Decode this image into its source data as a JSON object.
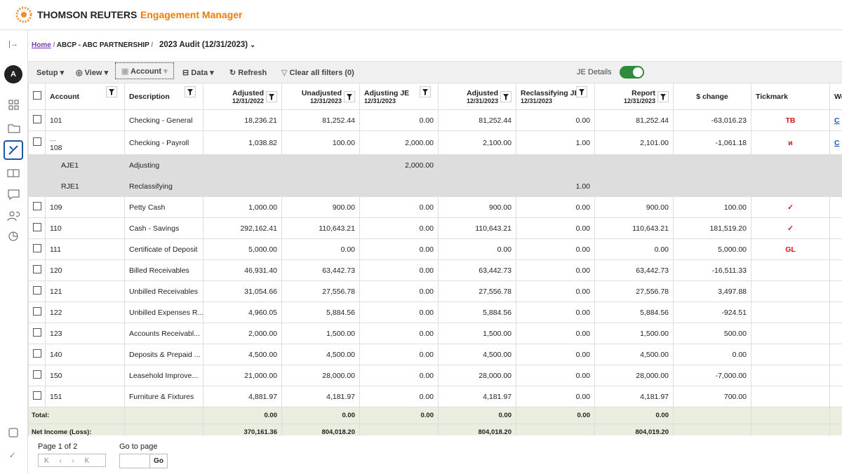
{
  "header": {
    "brand": "THOMSON REUTERS",
    "product": "Engagement Manager"
  },
  "avatar": "A",
  "breadcrumb": {
    "home": "Home",
    "client": "ABCP - ABC PARTNERSHIP",
    "engagement": "2023 Audit (12/31/2023)"
  },
  "toolbar": {
    "setup": "Setup",
    "view": "View",
    "account": "Account",
    "data": "Data",
    "refresh": "Refresh",
    "clear": "Clear all filters (0)",
    "je_details": "JE Details"
  },
  "table": {
    "columns": [
      {
        "label": "Account",
        "filter": true
      },
      {
        "label": "Description",
        "filter": true
      },
      {
        "label": "Adjusted",
        "sub": "12/31/2022",
        "filter": true
      },
      {
        "label": "Unadjusted",
        "sub": "12/31/2023",
        "filter": true
      },
      {
        "label": "Adjusting JE",
        "sub": "12/31/2023",
        "filter": true
      },
      {
        "label": "Adjusted",
        "sub": "12/31/2023",
        "filter": true
      },
      {
        "label": "Reclassifying JE",
        "sub": "12/31/2023",
        "filter": true
      },
      {
        "label": "Report",
        "sub": "12/31/2023",
        "filter": true
      },
      {
        "label": "$ change"
      },
      {
        "label": "Tickmark"
      },
      {
        "label": "Wo"
      }
    ],
    "rows": [
      {
        "cells": [
          "101",
          "Checking - General",
          "18,236.21",
          "81,252.44",
          "0.00",
          "81,252.44",
          "0.00",
          "81,252.44",
          "-63,016.23",
          "TB",
          "C"
        ]
      },
      {
        "expander": "—",
        "cells": [
          "108",
          "Checking - Payroll",
          "1,038.82",
          "100.00",
          "2,000.00",
          "2,100.00",
          "1.00",
          "2,101.00",
          "-1,061.18",
          "ᴎ",
          "C"
        ],
        "entries": [
          [
            "AJE1",
            "Adjusting",
            null,
            null,
            "2,000.00",
            null,
            null,
            null,
            null,
            null,
            null
          ],
          [
            "RJE1",
            "Reclassifying",
            null,
            null,
            null,
            null,
            "1.00",
            null,
            null,
            null,
            null
          ]
        ]
      },
      {
        "cells": [
          "109",
          "Petty Cash",
          "1,000.00",
          "900.00",
          "0.00",
          "900.00",
          "0.00",
          "900.00",
          "100.00",
          "✓",
          null
        ]
      },
      {
        "cells": [
          "110",
          "Cash - Savings",
          "292,162.41",
          "110,643.21",
          "0.00",
          "110,643.21",
          "0.00",
          "110,643.21",
          "181,519.20",
          "✓",
          null
        ]
      },
      {
        "cells": [
          "111",
          "Certificate of Deposit",
          "5,000.00",
          "0.00",
          "0.00",
          "0.00",
          "0.00",
          "0.00",
          "5,000.00",
          "GL",
          null
        ]
      },
      {
        "cells": [
          "120",
          "Billed Receivables",
          "46,931.40",
          "63,442.73",
          "0.00",
          "63,442.73",
          "0.00",
          "63,442.73",
          "-16,511.33",
          null,
          null
        ]
      },
      {
        "cells": [
          "121",
          "Unbilled Receivables",
          "31,054.66",
          "27,556.78",
          "0.00",
          "27,556.78",
          "0.00",
          "27,556.78",
          "3,497.88",
          null,
          null
        ]
      },
      {
        "cells": [
          "122",
          "Unbilled Expenses R...",
          "4,960.05",
          "5,884.56",
          "0.00",
          "5,884.56",
          "0.00",
          "5,884.56",
          "-924.51",
          null,
          null
        ]
      },
      {
        "cells": [
          "123",
          "Accounts Receivabl...",
          "2,000.00",
          "1,500.00",
          "0.00",
          "1,500.00",
          "0.00",
          "1,500.00",
          "500.00",
          null,
          null
        ]
      },
      {
        "cells": [
          "140",
          "Deposits & Prepaid ...",
          "4,500.00",
          "4,500.00",
          "0.00",
          "4,500.00",
          "0.00",
          "4,500.00",
          "0.00",
          null,
          null
        ]
      },
      {
        "cells": [
          "150",
          "Leasehold Improve...",
          "21,000.00",
          "28,000.00",
          "0.00",
          "28,000.00",
          "0.00",
          "28,000.00",
          "-7,000.00",
          null,
          null
        ]
      },
      {
        "cells": [
          "151",
          "Furniture & Fixtures",
          "4,881.97",
          "4,181.97",
          "0.00",
          "4,181.97",
          "0.00",
          "4,181.97",
          "700.00",
          null,
          null
        ]
      }
    ],
    "footer": [
      [
        "Total:",
        null,
        "0.00",
        "0.00",
        "0.00",
        "0.00",
        "0.00",
        "0.00",
        null,
        null,
        null
      ],
      [
        "Net Income (Loss):",
        null,
        "370,161.36",
        "804,018.20",
        null,
        "804,018.20",
        null,
        "804,019.20",
        null,
        null,
        null
      ]
    ]
  },
  "pagination": {
    "page": "Page 1 of 2",
    "goto": "Go to page",
    "go": "Go"
  }
}
